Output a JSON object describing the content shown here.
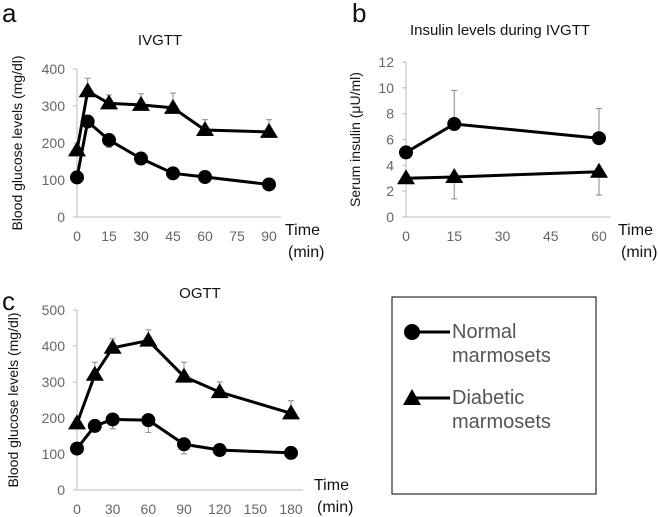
{
  "chart_data": [
    {
      "panel": "a",
      "type": "line",
      "title": "IVGTT",
      "ylabel": "Blood glucose levels (mg/dl)",
      "xlabel": [
        "Time",
        "(min)"
      ],
      "xticks": [
        0,
        15,
        30,
        45,
        60,
        75,
        90
      ],
      "yticks": [
        0,
        100,
        200,
        300,
        400
      ],
      "xlim": [
        0,
        90
      ],
      "ylim": [
        0,
        400
      ],
      "series": [
        {
          "name": "Normal marmosets",
          "marker": "circle",
          "x": [
            0,
            5,
            15,
            30,
            45,
            60,
            90
          ],
          "y": [
            107,
            258,
            208,
            158,
            118,
            108,
            88
          ],
          "err_low": [
            null,
            null,
            188,
            null,
            null,
            null,
            null
          ],
          "err_high": [
            null,
            null,
            null,
            null,
            null,
            null,
            null
          ]
        },
        {
          "name": "Diabetic marmosets",
          "marker": "triangle",
          "x": [
            0,
            5,
            15,
            30,
            45,
            60,
            90
          ],
          "y": [
            180,
            340,
            307,
            303,
            295,
            235,
            230
          ],
          "err_low": [
            null,
            null,
            null,
            null,
            null,
            null,
            null
          ],
          "err_high": [
            null,
            375,
            330,
            333,
            335,
            263,
            263
          ]
        }
      ]
    },
    {
      "panel": "b",
      "type": "line",
      "title": "Insulin levels during IVGTT",
      "ylabel": "Serum insulin (μU/ml)",
      "xlabel": [
        "Time",
        "(min)"
      ],
      "xticks": [
        0,
        15,
        30,
        45,
        60
      ],
      "yticks": [
        0,
        2,
        4,
        6,
        8,
        10,
        12
      ],
      "xlim": [
        0,
        60
      ],
      "ylim": [
        0,
        12
      ],
      "series": [
        {
          "name": "Normal marmosets",
          "marker": "circle",
          "x": [
            0,
            15,
            60
          ],
          "y": [
            5.0,
            7.2,
            6.1
          ],
          "err_low": [
            null,
            null,
            null
          ],
          "err_high": [
            null,
            9.8,
            8.4
          ]
        },
        {
          "name": "Diabetic marmosets",
          "marker": "triangle",
          "x": [
            0,
            15,
            60
          ],
          "y": [
            3.0,
            3.1,
            3.5
          ],
          "err_low": [
            null,
            1.4,
            1.7
          ],
          "err_high": [
            null,
            null,
            null
          ]
        }
      ]
    },
    {
      "panel": "c",
      "type": "line",
      "title": "OGTT",
      "ylabel": "Blood glucose levels (mg/dl)",
      "xlabel": [
        "Time",
        "(min)"
      ],
      "xticks": [
        0,
        30,
        60,
        90,
        120,
        150,
        180
      ],
      "yticks": [
        0,
        100,
        200,
        300,
        400,
        500
      ],
      "xlim": [
        0,
        180
      ],
      "ylim": [
        0,
        500
      ],
      "series": [
        {
          "name": "Normal marmosets",
          "marker": "circle",
          "x": [
            0,
            15,
            30,
            60,
            90,
            120,
            180
          ],
          "y": [
            115,
            178,
            196,
            194,
            127,
            111,
            103
          ],
          "err_low": [
            null,
            null,
            170,
            160,
            100,
            null,
            null
          ],
          "err_high": [
            null,
            null,
            null,
            null,
            null,
            null,
            null
          ]
        },
        {
          "name": "Diabetic marmosets",
          "marker": "triangle",
          "x": [
            0,
            15,
            30,
            60,
            90,
            120,
            180
          ],
          "y": [
            185,
            320,
            395,
            415,
            315,
            272,
            213
          ],
          "err_low": [
            null,
            null,
            null,
            null,
            null,
            null,
            null
          ],
          "err_high": [
            null,
            355,
            420,
            445,
            355,
            300,
            248
          ]
        }
      ]
    }
  ],
  "legend": {
    "items": [
      {
        "label": [
          "Normal",
          "marmosets"
        ],
        "marker": "circle"
      },
      {
        "label": [
          "Diabetic",
          "marmosets"
        ],
        "marker": "triangle"
      }
    ]
  },
  "colors": {
    "line": "#000000",
    "axis": "#bbbbbb",
    "tick": "#666666"
  }
}
